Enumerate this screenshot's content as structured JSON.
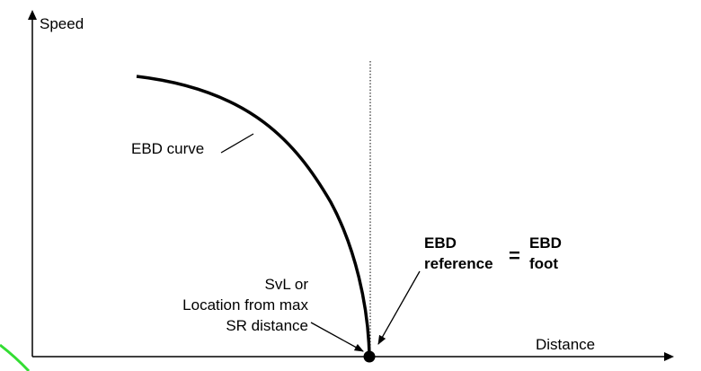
{
  "axes": {
    "y_label": "Speed",
    "x_label": "Distance"
  },
  "curve": {
    "label": "EBD curve"
  },
  "equation": {
    "left_line1": "EBD",
    "left_line2": "reference",
    "equals": "=",
    "right_line1": "EBD",
    "right_line2": "foot"
  },
  "location_note": {
    "line1": "SvL or",
    "line2": "Location from max",
    "line3": "SR distance"
  },
  "colors": {
    "lines": "#000000",
    "corner_mark": "#33dd33"
  }
}
